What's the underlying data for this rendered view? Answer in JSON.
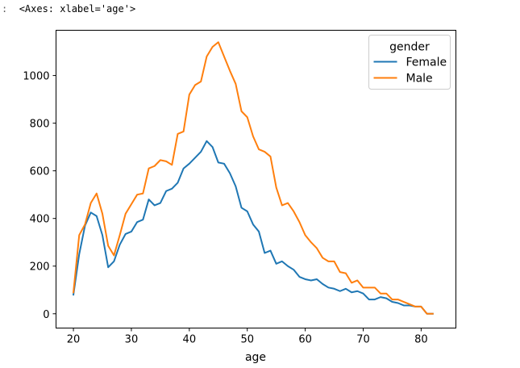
{
  "cell_output": {
    "prompt": ":",
    "text": "<Axes: xlabel='age'>"
  },
  "chart_data": {
    "type": "line",
    "title": "",
    "xlabel": "age",
    "ylabel": "",
    "xlim": [
      17,
      86
    ],
    "ylim": [
      -60,
      1190
    ],
    "xticks": [
      20,
      30,
      40,
      50,
      60,
      70,
      80
    ],
    "yticks": [
      0,
      200,
      400,
      600,
      800,
      1000
    ],
    "grid": false,
    "legend": {
      "title": "gender",
      "placement": "upper right"
    },
    "series": [
      {
        "name": "Female",
        "color": "#1f77b4",
        "x": [
          20,
          21,
          22,
          23,
          24,
          25,
          26,
          27,
          28,
          29,
          30,
          31,
          32,
          33,
          34,
          35,
          36,
          37,
          38,
          39,
          40,
          41,
          42,
          43,
          44,
          45,
          46,
          47,
          48,
          49,
          50,
          51,
          52,
          53,
          54,
          55,
          56,
          57,
          58,
          59,
          60,
          61,
          62,
          63,
          64,
          65,
          66,
          67,
          68,
          69,
          70,
          71,
          72,
          73,
          74,
          75,
          76,
          77,
          78,
          79,
          80,
          81,
          82
        ],
        "y": [
          80,
          250,
          370,
          425,
          410,
          330,
          195,
          220,
          290,
          335,
          345,
          385,
          395,
          480,
          455,
          465,
          515,
          525,
          550,
          610,
          630,
          655,
          680,
          725,
          700,
          635,
          630,
          590,
          535,
          445,
          430,
          375,
          345,
          255,
          265,
          210,
          220,
          200,
          185,
          155,
          145,
          140,
          145,
          125,
          110,
          105,
          95,
          105,
          90,
          95,
          85,
          60,
          60,
          70,
          65,
          50,
          45,
          35,
          35,
          30,
          30,
          0,
          0
        ]
      },
      {
        "name": "Male",
        "color": "#ff7f0e",
        "x": [
          20,
          21,
          22,
          23,
          24,
          25,
          26,
          27,
          28,
          29,
          30,
          31,
          32,
          33,
          34,
          35,
          36,
          37,
          38,
          39,
          40,
          41,
          42,
          43,
          44,
          45,
          46,
          47,
          48,
          49,
          50,
          51,
          52,
          53,
          54,
          55,
          56,
          57,
          58,
          59,
          60,
          61,
          62,
          63,
          64,
          65,
          66,
          67,
          68,
          69,
          70,
          71,
          72,
          73,
          74,
          75,
          76,
          77,
          78,
          79,
          80,
          81,
          82
        ],
        "y": [
          90,
          330,
          375,
          465,
          505,
          420,
          285,
          245,
          330,
          420,
          460,
          500,
          505,
          610,
          620,
          645,
          640,
          625,
          755,
          765,
          920,
          960,
          975,
          1080,
          1120,
          1140,
          1080,
          1020,
          965,
          850,
          825,
          745,
          690,
          680,
          660,
          530,
          455,
          465,
          430,
          385,
          330,
          300,
          275,
          235,
          220,
          220,
          175,
          170,
          130,
          140,
          110,
          110,
          110,
          85,
          85,
          60,
          60,
          50,
          40,
          30,
          30,
          0,
          0
        ]
      }
    ]
  }
}
